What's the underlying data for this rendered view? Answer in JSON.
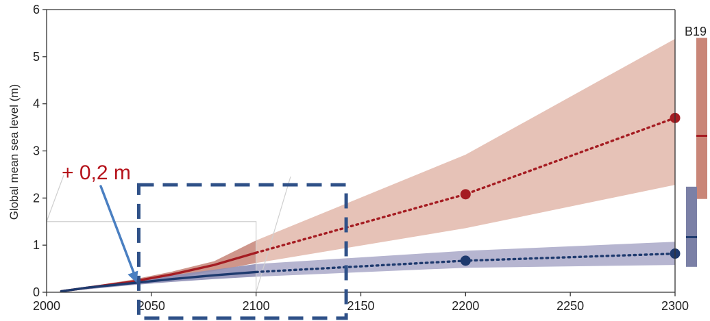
{
  "chart_data": {
    "type": "line",
    "title": "",
    "xlabel": "",
    "ylabel": "Global mean sea level (m)",
    "xlim": [
      2000,
      2300
    ],
    "ylim": [
      0,
      6
    ],
    "xticks": [
      2000,
      2050,
      2100,
      2150,
      2200,
      2250,
      2300
    ],
    "xtick_labels": [
      "2000",
      "2050",
      "2100",
      "2150",
      "2200",
      "2250",
      "2300"
    ],
    "yticks": [
      0,
      1,
      2,
      3,
      4,
      5,
      6
    ],
    "ytick_labels": [
      "0",
      "1",
      "2",
      "3",
      "4",
      "5",
      "6"
    ],
    "grid": false,
    "series": [
      {
        "color": "#a51c22",
        "band_color": "#e2b7aa",
        "band_inner_color": "#c98b7e",
        "solid": {
          "x": [
            2007,
            2020,
            2040,
            2060,
            2080,
            2100
          ],
          "y": [
            0.02,
            0.1,
            0.22,
            0.38,
            0.58,
            0.84
          ]
        },
        "solid_band": {
          "x": [
            2007,
            2040,
            2060,
            2080,
            2100
          ],
          "upper": [
            0.03,
            0.26,
            0.44,
            0.66,
            1.1
          ],
          "lower": [
            0.01,
            0.18,
            0.3,
            0.45,
            0.62
          ]
        },
        "dotted": {
          "x": [
            2100,
            2200,
            2300
          ],
          "y": [
            0.84,
            2.08,
            3.7
          ]
        },
        "band": {
          "x": [
            2100,
            2200,
            2300
          ],
          "upper": [
            1.1,
            2.92,
            5.38
          ],
          "lower": [
            0.62,
            1.36,
            2.28
          ]
        },
        "markers": {
          "x": [
            2200,
            2300
          ],
          "y": [
            2.08,
            3.7
          ]
        }
      },
      {
        "color": "#1e3a6e",
        "band_color": "#a9a8c8",
        "band_inner_color": "#8f8fb6",
        "solid": {
          "x": [
            2007,
            2020,
            2040,
            2060,
            2080,
            2100
          ],
          "y": [
            0.02,
            0.1,
            0.19,
            0.28,
            0.36,
            0.43
          ]
        },
        "solid_band": {
          "x": [
            2007,
            2040,
            2060,
            2080,
            2100
          ],
          "upper": [
            0.03,
            0.24,
            0.36,
            0.48,
            0.6
          ],
          "lower": [
            0.01,
            0.15,
            0.22,
            0.28,
            0.33
          ]
        },
        "dotted": {
          "x": [
            2100,
            2200,
            2300
          ],
          "y": [
            0.43,
            0.67,
            0.82
          ]
        },
        "band": {
          "x": [
            2100,
            2200,
            2300
          ],
          "upper": [
            0.6,
            0.88,
            1.07
          ],
          "lower": [
            0.33,
            0.52,
            0.58
          ]
        },
        "markers": {
          "x": [
            2200,
            2300
          ],
          "y": [
            0.67,
            0.82
          ]
        }
      }
    ],
    "side_bars": {
      "label": "B19",
      "items": [
        {
          "low": 1.98,
          "high": 5.4,
          "median": 3.32,
          "color": "#c98678",
          "median_color": "#a51c22"
        },
        {
          "low": 0.54,
          "high": 2.24,
          "median": 1.17,
          "color": "#7b80a6",
          "median_color": "#1e3a6e"
        }
      ]
    },
    "annotations": [
      {
        "text": "+ 0,2 m",
        "color": "#b5121b",
        "arrow_color": "#4a7fc1",
        "arrow_to": {
          "x": 2043,
          "y": 0.2
        }
      }
    ],
    "zoom_box": {
      "x": [
        2044,
        2143
      ],
      "y": [
        -0.55,
        2.28
      ],
      "color": "#2f5188"
    },
    "reference_box": {
      "x": [
        2000,
        2100
      ],
      "y": [
        0,
        1.5
      ],
      "color": "#cfcfcf"
    }
  }
}
